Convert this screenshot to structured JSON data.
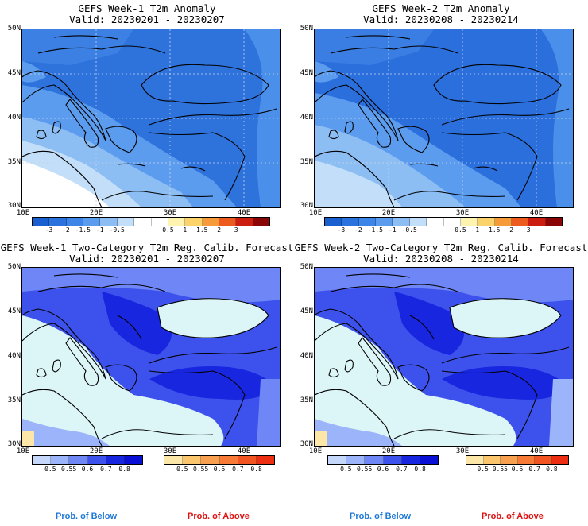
{
  "panels": {
    "tl": {
      "title1": "GEFS Week-1 T2m Anomaly",
      "title2": "Valid: 20230201 - 20230207"
    },
    "tr": {
      "title1": "GEFS Week-2 T2m Anomaly",
      "title2": "Valid: 20230208 - 20230214"
    },
    "bl": {
      "title1": "GEFS Week-1 Two-Category T2m Reg. Calib. Forecast",
      "title2": "Valid: 20230201 - 20230207"
    },
    "br": {
      "title1": "GEFS Week-2 Two-Category T2m Reg. Calib. Forecast",
      "title2": "Valid: 20230208 - 20230214"
    }
  },
  "axes": {
    "lat_labels": [
      "50N",
      "45N",
      "40N",
      "35N",
      "30N"
    ],
    "lon_labels": [
      "10E",
      "20E",
      "30E",
      "40E"
    ]
  },
  "anomaly_colorbar": {
    "colors": [
      "#1a5fd0",
      "#2a73df",
      "#3d86e8",
      "#5b9cef",
      "#8cbdf3",
      "#c2def8",
      "#ffffff",
      "#ffffff",
      "#fff3b0",
      "#fcd36a",
      "#f79a3a",
      "#ec5a1e",
      "#cc1e10",
      "#8a0606"
    ],
    "labels": [
      "-3",
      "-2",
      "-1.5",
      "-1",
      "-0.5",
      "0.5",
      "1",
      "1.5",
      "2",
      "3"
    ]
  },
  "below_colorbar": {
    "colors": [
      "#c5d8fc",
      "#9cb4fa",
      "#6e86f6",
      "#3d52ec",
      "#1826e0",
      "#0a0fd6"
    ],
    "labels": [
      "0.5",
      "0.55",
      "0.6",
      "0.7",
      "0.8"
    ]
  },
  "above_colorbar": {
    "colors": [
      "#fce7a8",
      "#fbc56e",
      "#f9a050",
      "#f77a36",
      "#f35522",
      "#ee2e12"
    ],
    "labels": [
      "0.5",
      "0.55",
      "0.6",
      "0.7",
      "0.8"
    ]
  },
  "captions": {
    "below": "Prob. of Below",
    "above": "Prob. of Above"
  }
}
